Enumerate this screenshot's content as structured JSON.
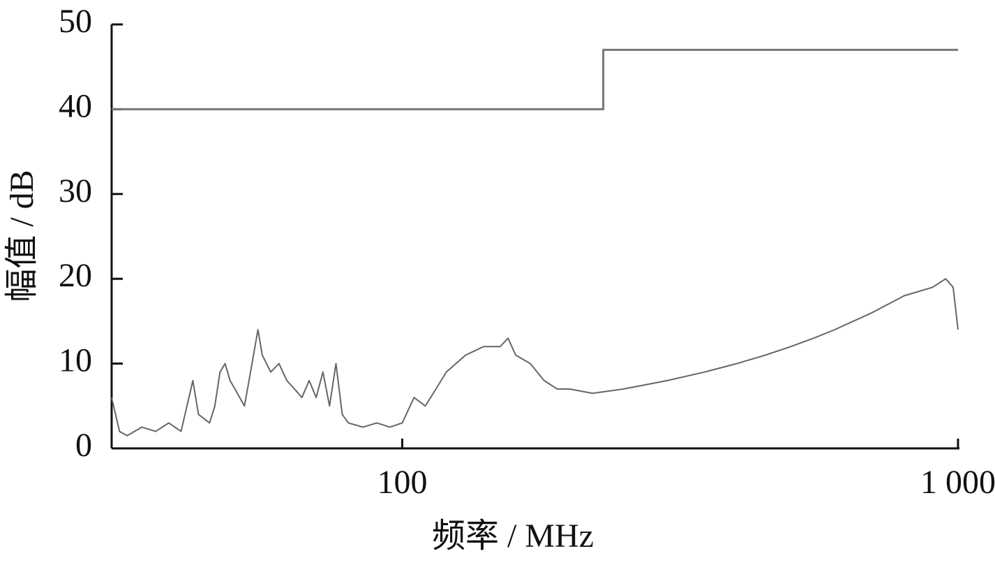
{
  "chart_data": {
    "type": "line",
    "xlabel": "频率 / MHz",
    "ylabel": "幅值 / dB",
    "xscale": "log",
    "xlim": [
      30,
      1000
    ],
    "ylim": [
      0,
      50
    ],
    "xticks": [
      100,
      {
        "value": 1000,
        "label": "1 000"
      }
    ],
    "yticks": [
      0,
      10,
      20,
      30,
      40,
      50
    ],
    "series": [
      {
        "color": "#777777",
        "step": true,
        "x": [
          30,
          230,
          230,
          1000
        ],
        "values": [
          40,
          40,
          47,
          47
        ]
      },
      {
        "color": "#666666",
        "x": [
          30,
          31,
          32,
          34,
          36,
          38,
          40,
          42,
          43,
          45,
          46,
          47,
          48,
          49,
          50,
          52,
          53,
          55,
          56,
          58,
          60,
          62,
          64,
          66,
          68,
          70,
          72,
          74,
          76,
          78,
          80,
          85,
          90,
          95,
          100,
          105,
          110,
          115,
          120,
          130,
          140,
          150,
          155,
          160,
          170,
          180,
          190,
          200,
          220,
          250,
          300,
          350,
          400,
          450,
          500,
          550,
          600,
          700,
          800,
          900,
          950,
          980,
          1000
        ],
        "values": [
          6,
          2,
          1.5,
          2.5,
          2,
          3,
          2,
          8,
          4,
          3,
          5,
          9,
          10,
          8,
          7,
          5,
          8,
          14,
          11,
          9,
          10,
          8,
          7,
          6,
          8,
          6,
          9,
          5,
          10,
          4,
          3,
          2.5,
          3,
          2.5,
          3,
          6,
          5,
          7,
          9,
          11,
          12,
          12,
          13,
          11,
          10,
          8,
          7,
          7,
          6.5,
          7,
          8,
          9,
          10,
          11,
          12,
          13,
          14,
          16,
          18,
          19,
          20,
          19,
          14
        ]
      }
    ]
  }
}
